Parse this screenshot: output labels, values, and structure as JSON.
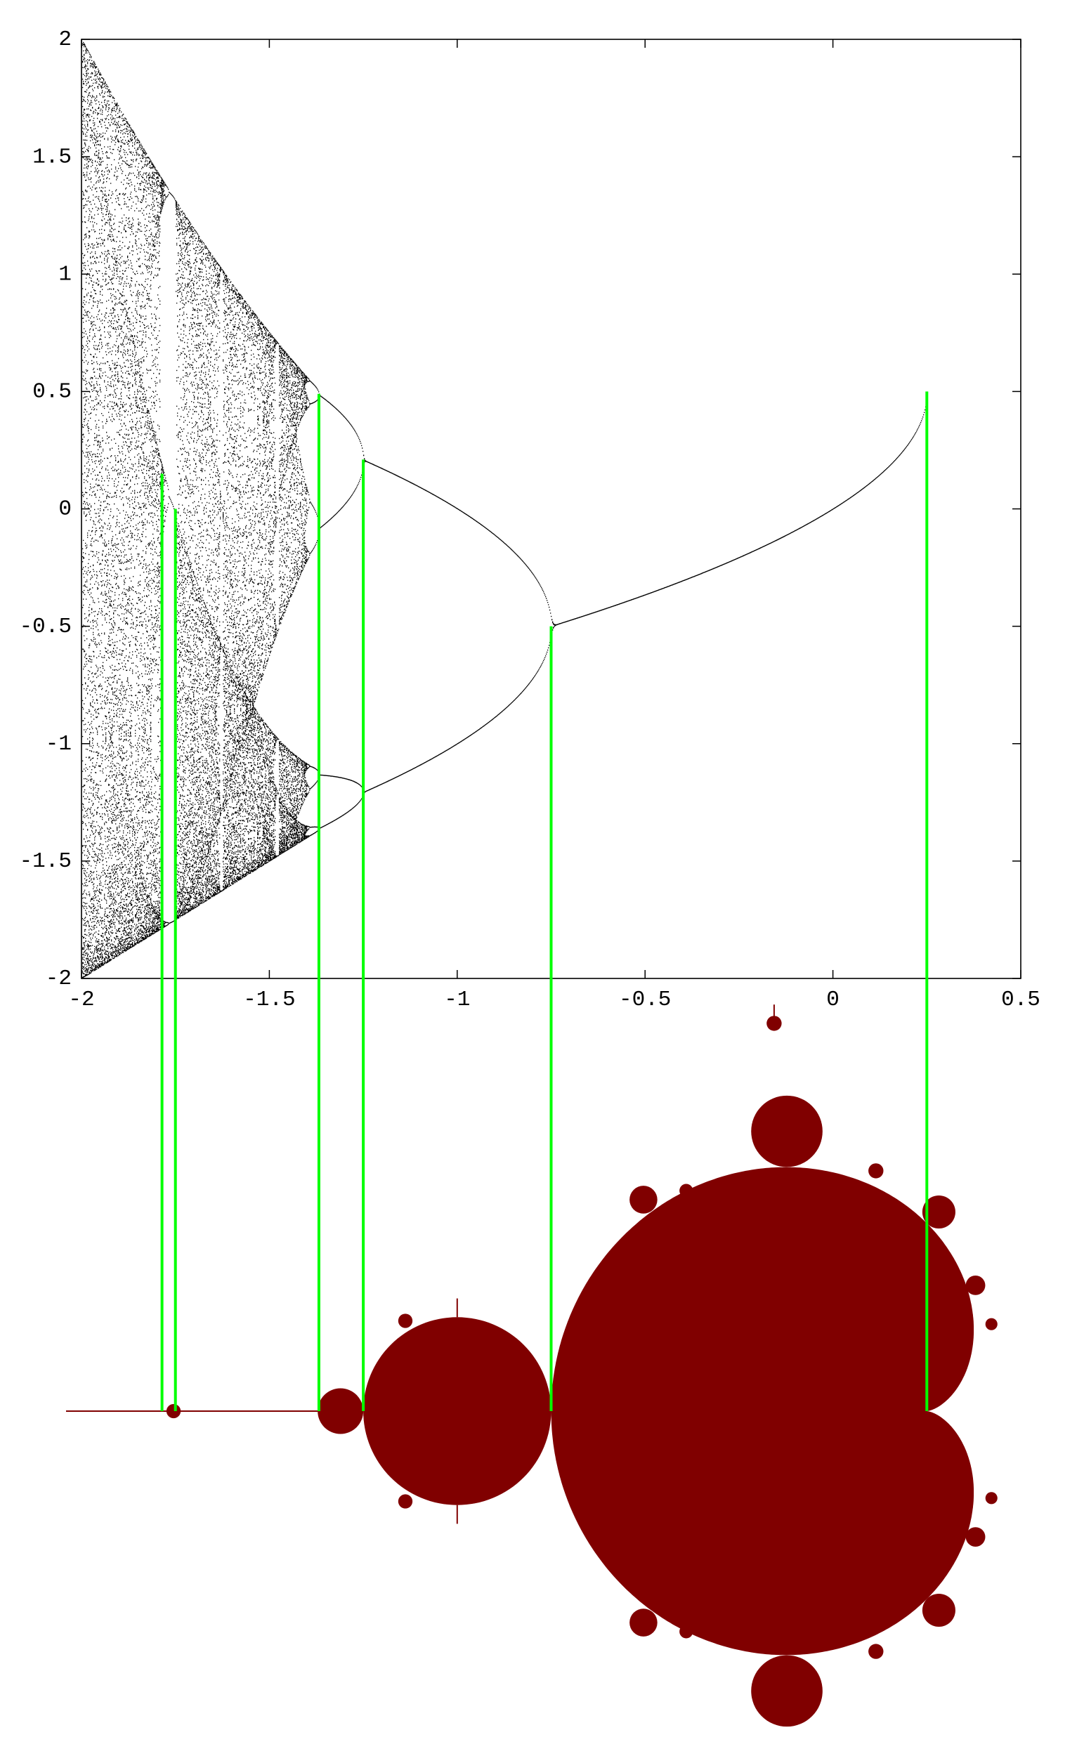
{
  "chart_data": {
    "type": "bifurcation",
    "xlim": [
      -2,
      0.5
    ],
    "ylim": [
      -2,
      2
    ],
    "xticks": [
      -2,
      -1.5,
      -1,
      -0.5,
      0,
      0.5
    ],
    "yticks": [
      -2,
      -1.5,
      -1,
      -0.5,
      0,
      0.5,
      1,
      1.5,
      2
    ],
    "markers": {
      "color": "#00ff00",
      "x": [
        -1.7857,
        -1.75,
        -1.3681,
        -1.25,
        -0.75,
        0.25
      ],
      "y": [
        0.15,
        0,
        0.49,
        0.21,
        -0.5,
        0.5
      ]
    }
  }
}
